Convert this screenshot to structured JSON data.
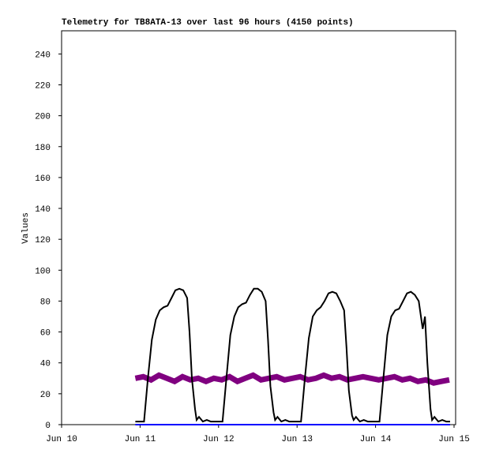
{
  "chart_data": {
    "type": "line",
    "title": "Telemetry for TB8ATA-13 over last 96 hours (4150 points)",
    "y_label": "Values",
    "xlim": [
      0,
      5.02
    ],
    "ylim": [
      0,
      255
    ],
    "xticks": [
      {
        "value": 0,
        "label": "Jun 10"
      },
      {
        "value": 1,
        "label": "Jun 11"
      },
      {
        "value": 2,
        "label": "Jun 12"
      },
      {
        "value": 3,
        "label": "Jun 13"
      },
      {
        "value": 4,
        "label": "Jun 14"
      },
      {
        "value": 5,
        "label": "Jun 15"
      }
    ],
    "yticks": [
      0,
      20,
      40,
      60,
      80,
      100,
      120,
      140,
      160,
      180,
      200,
      220,
      240
    ],
    "series": [
      {
        "color": "#800080",
        "width": 7,
        "x": [
          0.94,
          1.04,
          1.14,
          1.24,
          1.34,
          1.44,
          1.54,
          1.64,
          1.74,
          1.84,
          1.94,
          2.04,
          2.14,
          2.24,
          2.34,
          2.44,
          2.54,
          2.64,
          2.74,
          2.84,
          2.94,
          3.04,
          3.14,
          3.24,
          3.34,
          3.44,
          3.54,
          3.64,
          3.74,
          3.84,
          3.94,
          4.04,
          4.14,
          4.24,
          4.34,
          4.44,
          4.54,
          4.64,
          4.74,
          4.84,
          4.94
        ],
        "values": [
          30,
          31,
          29,
          32,
          30,
          28,
          31,
          29,
          30,
          28,
          30,
          29,
          31,
          28,
          30,
          32,
          29,
          30,
          31,
          29,
          30,
          31,
          29,
          30,
          32,
          30,
          31,
          29,
          30,
          31,
          30,
          29,
          30,
          31,
          29,
          30,
          28,
          29,
          27,
          28,
          29
        ]
      },
      {
        "color": "#0000ff",
        "width": 2,
        "x": [
          0.94,
          4.95
        ],
        "values": [
          0,
          0
        ]
      },
      {
        "color": "#000000",
        "width": 2,
        "x": [
          0.94,
          1.05,
          1.1,
          1.15,
          1.2,
          1.25,
          1.3,
          1.35,
          1.4,
          1.45,
          1.5,
          1.55,
          1.6,
          1.63,
          1.66,
          1.7,
          1.72,
          1.75,
          1.8,
          1.85,
          1.9,
          1.95,
          2.05,
          2.1,
          2.15,
          2.2,
          2.25,
          2.3,
          2.35,
          2.4,
          2.45,
          2.5,
          2.55,
          2.6,
          2.63,
          2.66,
          2.7,
          2.72,
          2.75,
          2.8,
          2.85,
          2.9,
          2.95,
          3.05,
          3.1,
          3.15,
          3.2,
          3.25,
          3.3,
          3.35,
          3.4,
          3.45,
          3.5,
          3.55,
          3.6,
          3.63,
          3.66,
          3.7,
          3.72,
          3.75,
          3.8,
          3.85,
          3.9,
          3.95,
          4.05,
          4.1,
          4.15,
          4.2,
          4.25,
          4.3,
          4.35,
          4.4,
          4.45,
          4.5,
          4.55,
          4.6,
          4.63,
          4.66,
          4.7,
          4.72,
          4.75,
          4.8,
          4.85,
          4.9,
          4.95
        ],
        "values": [
          2,
          2,
          30,
          55,
          68,
          74,
          76,
          77,
          82,
          87,
          88,
          87,
          82,
          60,
          30,
          10,
          3,
          5,
          2,
          3,
          2,
          2,
          2,
          30,
          58,
          70,
          76,
          78,
          79,
          84,
          88,
          88,
          86,
          80,
          55,
          25,
          8,
          3,
          5,
          2,
          3,
          2,
          2,
          2,
          30,
          56,
          70,
          74,
          76,
          80,
          85,
          86,
          85,
          80,
          74,
          50,
          22,
          6,
          3,
          5,
          2,
          3,
          2,
          2,
          2,
          30,
          58,
          70,
          74,
          75,
          80,
          85,
          86,
          84,
          80,
          62,
          70,
          40,
          10,
          3,
          5,
          2,
          3,
          2,
          2
        ]
      }
    ]
  }
}
